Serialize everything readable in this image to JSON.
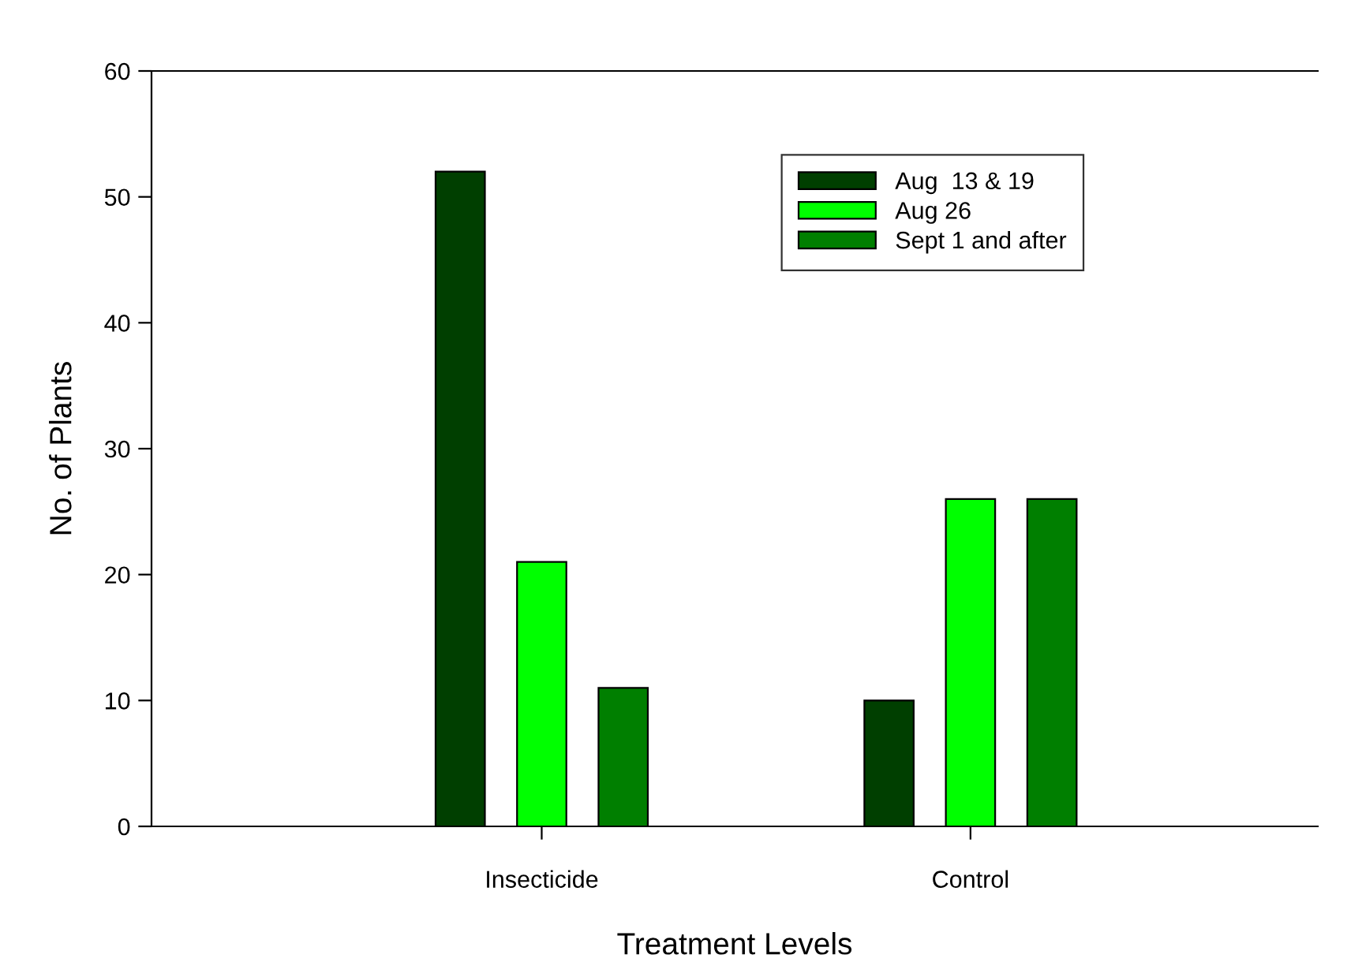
{
  "chart_data": {
    "type": "bar",
    "xlabel": "Treatment Levels",
    "ylabel": "No. of Plants",
    "categories": [
      "Insecticide",
      "Control"
    ],
    "series": [
      {
        "name": "Aug  13 & 19",
        "color": "#003f00",
        "values": [
          52,
          10
        ]
      },
      {
        "name": "Aug 26",
        "color": "#00ff00",
        "values": [
          21,
          26
        ]
      },
      {
        "name": "Sept 1 and after",
        "color": "#007f00",
        "values": [
          11,
          26
        ]
      }
    ],
    "ylim": [
      0,
      60
    ],
    "yticks": [
      0,
      10,
      20,
      30,
      40,
      50,
      60
    ],
    "grid": false,
    "legend": "top right"
  }
}
